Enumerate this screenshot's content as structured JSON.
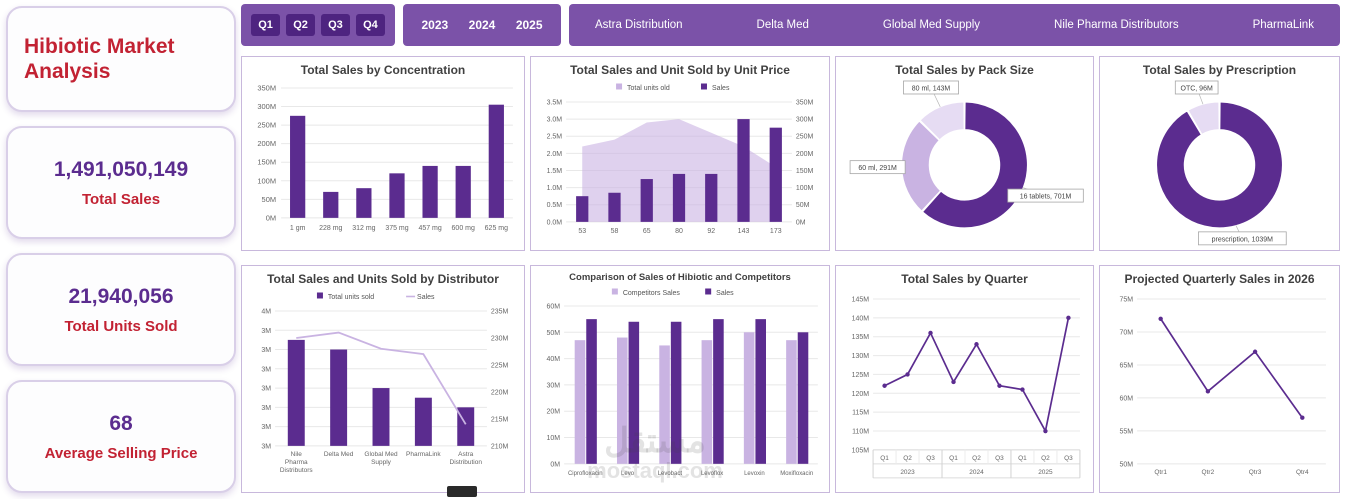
{
  "colors": {
    "dark": "#5b2c8f",
    "light": "#c9b3e2",
    "lighter": "#e6dcf3",
    "grid": "#e8e8e8",
    "axis": "#666666",
    "title": "#404040",
    "accent_red": "#c22233",
    "slicer_bg": "#7b52a8",
    "chip_bg": "#4e2480"
  },
  "sidebar": {
    "title": "Hibiotic Market Analysis",
    "kpis": [
      {
        "value": "1,491,050,149",
        "label": "Total Sales"
      },
      {
        "value": "21,940,056",
        "label": "Total Units Sold"
      },
      {
        "value": "68",
        "label": "Average Selling Price"
      }
    ]
  },
  "slicers": {
    "quarters": [
      "Q1",
      "Q2",
      "Q3",
      "Q4"
    ],
    "years": [
      "2023",
      "2024",
      "2025"
    ],
    "distributors": [
      "Astra Distribution",
      "Delta Med",
      "Global Med Supply",
      "Nile Pharma Distributors",
      "PharmaLink"
    ]
  },
  "watermark": {
    "arabic": "مستقل",
    "domain": "mostaql.com"
  },
  "chart_data": [
    {
      "id": "sales-by-concentration",
      "type": "bar",
      "title": "Total Sales by Concentration",
      "categories": [
        "1 gm",
        "228 mg",
        "312 mg",
        "375 mg",
        "457 mg",
        "600 mg",
        "625 mg"
      ],
      "values": [
        275,
        70,
        80,
        120,
        140,
        140,
        305
      ],
      "value_unit": "M",
      "ylim": [
        0,
        350
      ],
      "ytick_step": 50
    },
    {
      "id": "sales-and-units-by-unit-price",
      "type": "combo_area_bar",
      "title": "Total Sales and Unit Sold by Unit Price",
      "categories": [
        "53",
        "58",
        "65",
        "80",
        "92",
        "143",
        "173"
      ],
      "series": [
        {
          "name": "Total units old",
          "type": "area",
          "axis": "left",
          "values": [
            2.2,
            2.4,
            2.9,
            3.0,
            2.6,
            2.2,
            1.6
          ]
        },
        {
          "name": "Sales",
          "type": "bar",
          "axis": "right",
          "values": [
            75,
            85,
            125,
            140,
            140,
            300,
            275
          ]
        }
      ],
      "left_ylim": [
        0,
        3.5
      ],
      "left_tick_step": 0.5,
      "left_decimals": 1,
      "right_ylim": [
        0,
        350
      ],
      "right_tick_step": 50,
      "value_unit": "M"
    },
    {
      "id": "sales-by-pack-size",
      "type": "donut",
      "title": "Total Sales by Pack Size",
      "value_unit": "M",
      "slices": [
        {
          "label": "16 tablets",
          "value": 701,
          "color_key": "dark"
        },
        {
          "label": "60 ml",
          "value": 291,
          "color_key": "light"
        },
        {
          "label": "80 ml",
          "value": 143,
          "color_key": "lighter"
        }
      ]
    },
    {
      "id": "sales-by-prescription",
      "type": "donut",
      "title": "Total Sales by Prescription",
      "value_unit": "M",
      "slices": [
        {
          "label": "prescription",
          "value": 1039,
          "color_key": "dark"
        },
        {
          "label": "OTC",
          "value": 96,
          "color_key": "lighter"
        }
      ]
    },
    {
      "id": "sales-and-units-by-distributor",
      "type": "combo_bar_line",
      "title": "Total Sales and Units Sold by Distributor",
      "categories": [
        "Nile Pharma Distributors",
        "Delta Med",
        "Global Med Supply",
        "PharmaLink",
        "Astra Distribution"
      ],
      "series": [
        {
          "name": "Total units sold",
          "type": "bar",
          "axis": "left",
          "values": [
            3.7,
            3.6,
            3.2,
            3.1,
            3.0
          ]
        },
        {
          "name": "Sales",
          "type": "line",
          "axis": "right",
          "values": [
            230,
            231,
            228,
            227,
            214
          ]
        }
      ],
      "left_ylim": [
        2.6,
        4.0
      ],
      "left_tick_labels": [
        "4M",
        "3M",
        "3M",
        "3M",
        "3M",
        "3M",
        "3M",
        "3M"
      ],
      "right_ylim": [
        210,
        235
      ],
      "right_tick_step": 5,
      "value_unit": "M"
    },
    {
      "id": "hibiotic-vs-competitors",
      "type": "grouped_bar",
      "title": "Comparison of Sales of Hibiotic and Competitors",
      "categories": [
        "Ciprofloxacin",
        "Levo",
        "Levobact",
        "Levoflox",
        "Levoxin",
        "Moxifloxacin"
      ],
      "series": [
        {
          "name": "Competitors Sales",
          "color_key": "light",
          "values": [
            47,
            48,
            45,
            47,
            50,
            47
          ]
        },
        {
          "name": "Sales",
          "color_key": "dark",
          "values": [
            55,
            54,
            54,
            55,
            55,
            50
          ]
        }
      ],
      "ylim": [
        0,
        60
      ],
      "ytick_step": 10,
      "value_unit": "M"
    },
    {
      "id": "sales-by-quarter",
      "type": "line",
      "title": "Total Sales by Quarter",
      "categories": [
        "Q1",
        "Q2",
        "Q3",
        "Q1",
        "Q2",
        "Q3",
        "Q1",
        "Q2",
        "Q3"
      ],
      "groups": [
        {
          "label": "2023",
          "span": 3
        },
        {
          "label": "2024",
          "span": 3
        },
        {
          "label": "2025",
          "span": 3
        }
      ],
      "values": [
        122,
        125,
        136,
        123,
        133,
        122,
        121,
        110,
        140
      ],
      "ylim": [
        105,
        145
      ],
      "ytick_step": 5,
      "value_unit": "M"
    },
    {
      "id": "projected-quarterly-sales-2026",
      "type": "line",
      "title": "Projected Quarterly Sales in 2026",
      "categories": [
        "Qtr1",
        "Qtr2",
        "Qtr3",
        "Qtr4"
      ],
      "values": [
        72,
        61,
        67,
        57
      ],
      "ylim": [
        50,
        75
      ],
      "ytick_step": 5,
      "value_unit": "M"
    }
  ]
}
